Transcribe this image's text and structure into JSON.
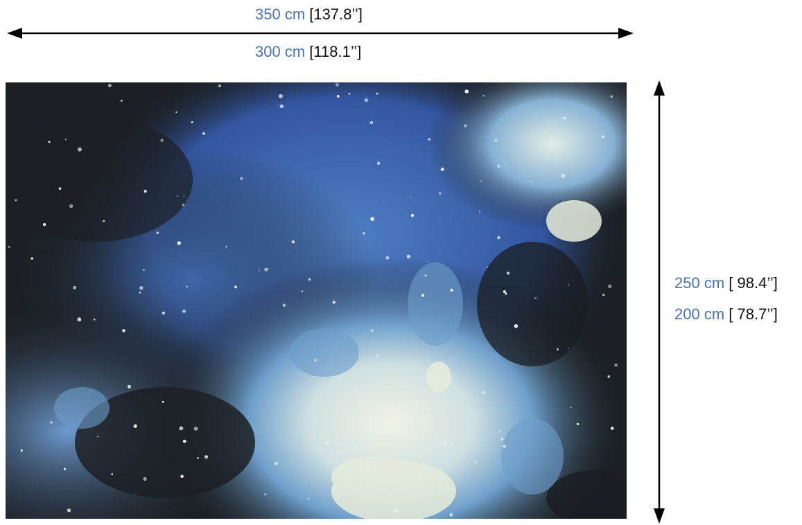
{
  "width": {
    "max": {
      "cm": "350 cm",
      "inch": "[137.8’’]"
    },
    "min": {
      "cm": "300 cm",
      "inch": "[118.1’’]"
    }
  },
  "height": {
    "max": {
      "cm": "250 cm",
      "inch": "[ 98.4’’]"
    },
    "min": {
      "cm": "200 cm",
      "inch": "[ 78.7’’]"
    }
  },
  "colors": {
    "label_cm": "#4a72b8",
    "label_inch": "#111111",
    "rug_dark": "#1c2025",
    "rug_blue": "#3f66a8",
    "rug_light_blue": "#7ea8cf",
    "rug_cream": "#e8ecd9"
  }
}
